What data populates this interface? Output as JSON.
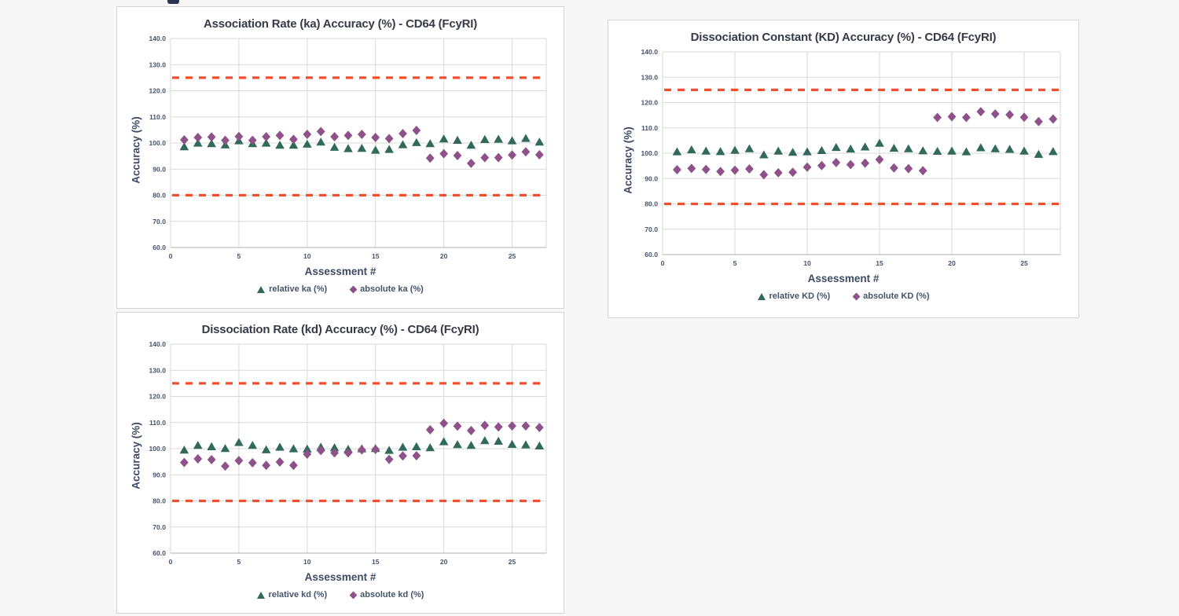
{
  "page": {
    "cropped_heading_fragment": "partial text cut off at top edge"
  },
  "colors": {
    "relative_marker": "#31695A",
    "absolute_marker": "#8E5189",
    "limit_line": "#F44E2C",
    "gridline": "#D9D9D9",
    "axis_line": "#BFBFBF",
    "tick_text": "#44546A",
    "title_text": "#363B47"
  },
  "chart_data": [
    {
      "type": "scatter",
      "title": "Association Rate (ka) Accuracy (%) - CD64 (FcyRI)",
      "xlabel": "Assessment #",
      "ylabel": "Accuracy (%)",
      "ylim": [
        60.0,
        140.0
      ],
      "yticks": [
        60.0,
        70.0,
        80.0,
        90.0,
        100.0,
        110.0,
        120.0,
        130.0,
        140.0
      ],
      "xticks": [
        0,
        5,
        10,
        15,
        20,
        25
      ],
      "xlim": [
        0,
        27.5
      ],
      "upper_limit_line": 125.0,
      "lower_limit_line": 80.0,
      "grid": true,
      "legend_position": "bottom",
      "x": [
        1,
        2,
        3,
        4,
        5,
        6,
        7,
        8,
        9,
        10,
        11,
        12,
        13,
        14,
        15,
        16,
        17,
        18,
        19,
        20,
        21,
        22,
        23,
        24,
        25,
        26,
        27
      ],
      "series": [
        {
          "name": "relative ka (%)",
          "marker": "triangle",
          "values": [
            98.6,
            100.0,
            99.8,
            99.3,
            100.9,
            99.8,
            100.0,
            99.2,
            99.2,
            99.6,
            100.4,
            98.4,
            97.9,
            98.0,
            97.3,
            97.6,
            99.4,
            100.2,
            99.8,
            101.6,
            101.1,
            99.2,
            101.4,
            101.5,
            100.9,
            101.8,
            100.4
          ]
        },
        {
          "name": "absolute ka (%)",
          "marker": "diamond",
          "values": [
            101.2,
            102.1,
            102.3,
            101.0,
            102.5,
            101.0,
            102.4,
            102.9,
            101.4,
            103.3,
            104.4,
            102.4,
            102.9,
            103.3,
            102.1,
            101.7,
            103.6,
            104.8,
            94.2,
            95.9,
            95.2,
            92.2,
            94.4,
            94.4,
            95.4,
            96.6,
            95.5
          ]
        }
      ]
    },
    {
      "type": "scatter",
      "title": "Dissociation Constant (KD) Accuracy (%) - CD64 (FcyRI)",
      "xlabel": "Assessment #",
      "ylabel": "Accuracy (%)",
      "ylim": [
        60.0,
        140.0
      ],
      "yticks": [
        60.0,
        70.0,
        80.0,
        90.0,
        100.0,
        110.0,
        120.0,
        130.0,
        140.0
      ],
      "xticks": [
        0,
        5,
        10,
        15,
        20,
        25
      ],
      "xlim": [
        0,
        27.5
      ],
      "upper_limit_line": 125.0,
      "lower_limit_line": 80.0,
      "grid": true,
      "legend_position": "bottom",
      "x": [
        1,
        2,
        3,
        4,
        5,
        6,
        7,
        8,
        9,
        10,
        11,
        12,
        13,
        14,
        15,
        16,
        17,
        18,
        19,
        20,
        21,
        22,
        23,
        24,
        25,
        26,
        27
      ],
      "series": [
        {
          "name": "relative KD (%)",
          "marker": "triangle",
          "values": [
            100.6,
            101.4,
            100.9,
            100.7,
            101.2,
            101.8,
            99.4,
            100.9,
            100.4,
            100.6,
            101.1,
            102.3,
            101.7,
            102.5,
            104.0,
            102.0,
            101.8,
            101.0,
            100.8,
            100.9,
            100.6,
            102.2,
            101.8,
            101.6,
            100.9,
            99.6,
            100.7
          ]
        },
        {
          "name": "absolute KD (%)",
          "marker": "diamond",
          "values": [
            93.5,
            94.0,
            93.6,
            92.8,
            93.3,
            93.8,
            91.5,
            92.3,
            92.5,
            94.5,
            95.1,
            96.3,
            95.5,
            96.1,
            97.5,
            94.2,
            93.9,
            93.1,
            114.1,
            114.4,
            114.1,
            116.4,
            115.5,
            115.2,
            114.2,
            112.5,
            113.5
          ]
        }
      ]
    },
    {
      "type": "scatter",
      "title": "Dissociation Rate (kd) Accuracy (%) - CD64 (FcyRI)",
      "xlabel": "Assessment #",
      "ylabel": "Accuracy (%)",
      "ylim": [
        60.0,
        140.0
      ],
      "yticks": [
        60.0,
        70.0,
        80.0,
        90.0,
        100.0,
        110.0,
        120.0,
        130.0,
        140.0
      ],
      "xticks": [
        0,
        5,
        10,
        15,
        20,
        25
      ],
      "xlim": [
        0,
        27.5
      ],
      "upper_limit_line": 125.0,
      "lower_limit_line": 80.0,
      "grid": true,
      "legend_position": "bottom",
      "x": [
        1,
        2,
        3,
        4,
        5,
        6,
        7,
        8,
        9,
        10,
        11,
        12,
        13,
        14,
        15,
        16,
        17,
        18,
        19,
        20,
        21,
        22,
        23,
        24,
        25,
        26,
        27
      ],
      "series": [
        {
          "name": "relative kd (%)",
          "marker": "triangle",
          "values": [
            99.5,
            101.3,
            100.8,
            100.1,
            102.4,
            101.3,
            99.6,
            100.6,
            100.0,
            99.9,
            100.6,
            100.4,
            99.8,
            100.0,
            100.1,
            99.4,
            100.6,
            100.8,
            100.4,
            102.7,
            101.6,
            101.3,
            103.1,
            102.9,
            101.7,
            101.5,
            101.1
          ]
        },
        {
          "name": "absolute kd (%)",
          "marker": "diamond",
          "values": [
            94.7,
            96.1,
            95.8,
            93.3,
            95.4,
            94.6,
            93.6,
            94.9,
            93.6,
            97.9,
            99.3,
            98.4,
            98.4,
            99.5,
            99.7,
            95.9,
            97.2,
            97.3,
            107.2,
            109.7,
            108.6,
            106.9,
            108.9,
            108.3,
            108.7,
            108.7,
            108.1
          ]
        }
      ]
    }
  ]
}
